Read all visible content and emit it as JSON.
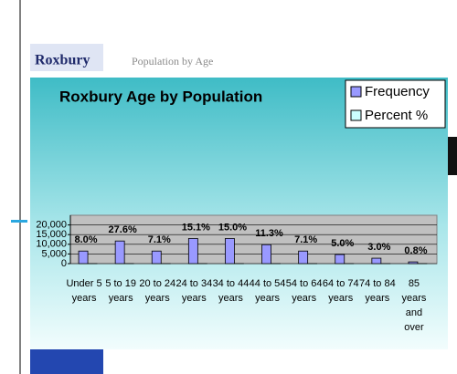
{
  "header": {
    "title": "Roxbury",
    "subtitle": "Population by Age"
  },
  "chart_data": {
    "type": "bar",
    "title": "Roxbury Age by Population",
    "categories": [
      "Under 5 years",
      "5 to 19 years",
      "20 to 24 years",
      "24 to 34 years",
      "34 to 44 years",
      "44 to 54 years",
      "54 to 64 years",
      "64 to 74 years",
      "74 to 84 years",
      "85 years and over"
    ],
    "series": [
      {
        "name": "Frequency",
        "color": "#9999ff",
        "values": [
          6500,
          11700,
          6500,
          13000,
          13000,
          9800,
          6500,
          4700,
          2800,
          900
        ]
      },
      {
        "name": "Percent %",
        "color": "#ccffff",
        "values": [
          8.0,
          27.6,
          7.1,
          15.1,
          15.0,
          11.3,
          7.1,
          5.0,
          3.0,
          0.8
        ],
        "value_labels": [
          "8.0%",
          "27.6%",
          "7.1%",
          "15.1%",
          "15.0%",
          "11.3%",
          "7.1%",
          "5.0%",
          "3.0%",
          "0.8%"
        ]
      }
    ],
    "ylim": [
      0,
      25000
    ],
    "yticks": [
      {
        "value": 0,
        "label": "0"
      },
      {
        "value": 5000,
        "label": "5,000"
      },
      {
        "value": 10000,
        "label": "10,000"
      },
      {
        "value": 15000,
        "label": "15,000"
      },
      {
        "value": 20000,
        "label": "20,000"
      }
    ],
    "grid": true,
    "legend": "top-right"
  }
}
